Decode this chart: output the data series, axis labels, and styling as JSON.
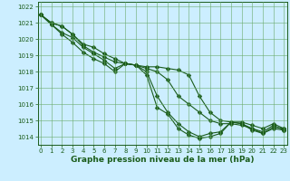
{
  "xlabel": "Graphe pression niveau de la mer (hPa)",
  "x": [
    0,
    1,
    2,
    3,
    4,
    5,
    6,
    7,
    8,
    9,
    10,
    11,
    12,
    13,
    14,
    15,
    16,
    17,
    18,
    19,
    20,
    21,
    22,
    23
  ],
  "series": [
    [
      1021.5,
      1021.0,
      1020.8,
      1020.3,
      1019.7,
      1019.5,
      1019.1,
      1018.8,
      1018.5,
      1018.4,
      1018.3,
      1018.3,
      1018.2,
      1018.1,
      1017.8,
      1016.5,
      1015.5,
      1015.0,
      1014.9,
      1014.9,
      1014.7,
      1014.5,
      1014.8,
      1014.5
    ],
    [
      1021.5,
      1021.0,
      1020.8,
      1020.3,
      1019.6,
      1019.2,
      1018.9,
      1018.6,
      1018.5,
      1018.4,
      1018.2,
      1018.0,
      1017.5,
      1016.5,
      1016.0,
      1015.5,
      1015.0,
      1014.8,
      1014.8,
      1014.7,
      1014.5,
      1014.3,
      1014.7,
      1014.4
    ],
    [
      1021.5,
      1020.9,
      1020.4,
      1020.1,
      1019.5,
      1019.1,
      1018.7,
      1018.2,
      1018.5,
      1018.4,
      1018.0,
      1016.5,
      1015.5,
      1014.8,
      1014.3,
      1014.0,
      1014.2,
      1014.3,
      1014.9,
      1014.8,
      1014.5,
      1014.2,
      1014.6,
      1014.5
    ],
    [
      1021.5,
      1020.9,
      1020.3,
      1019.8,
      1019.2,
      1018.8,
      1018.5,
      1018.0,
      1018.5,
      1018.4,
      1017.8,
      1015.8,
      1015.4,
      1014.5,
      1014.1,
      1013.9,
      1014.0,
      1014.2,
      1014.9,
      1014.8,
      1014.4,
      1014.2,
      1014.5,
      1014.4
    ]
  ],
  "line_color": "#1a5c1a",
  "marker": "D",
  "markersize": 2.5,
  "bg_color": "#cceeff",
  "grid_color": "#6aaa6a",
  "ylim": [
    1013.5,
    1022.3
  ],
  "yticks": [
    1014,
    1015,
    1016,
    1017,
    1018,
    1019,
    1020,
    1021,
    1022
  ],
  "xticks": [
    0,
    1,
    2,
    3,
    4,
    5,
    6,
    7,
    8,
    9,
    10,
    11,
    12,
    13,
    14,
    15,
    16,
    17,
    18,
    19,
    20,
    21,
    22,
    23
  ],
  "tick_color": "#1a5c1a",
  "label_color": "#1a5c1a",
  "label_fontsize": 6.5,
  "tick_fontsize": 5.0,
  "linewidth": 0.8
}
